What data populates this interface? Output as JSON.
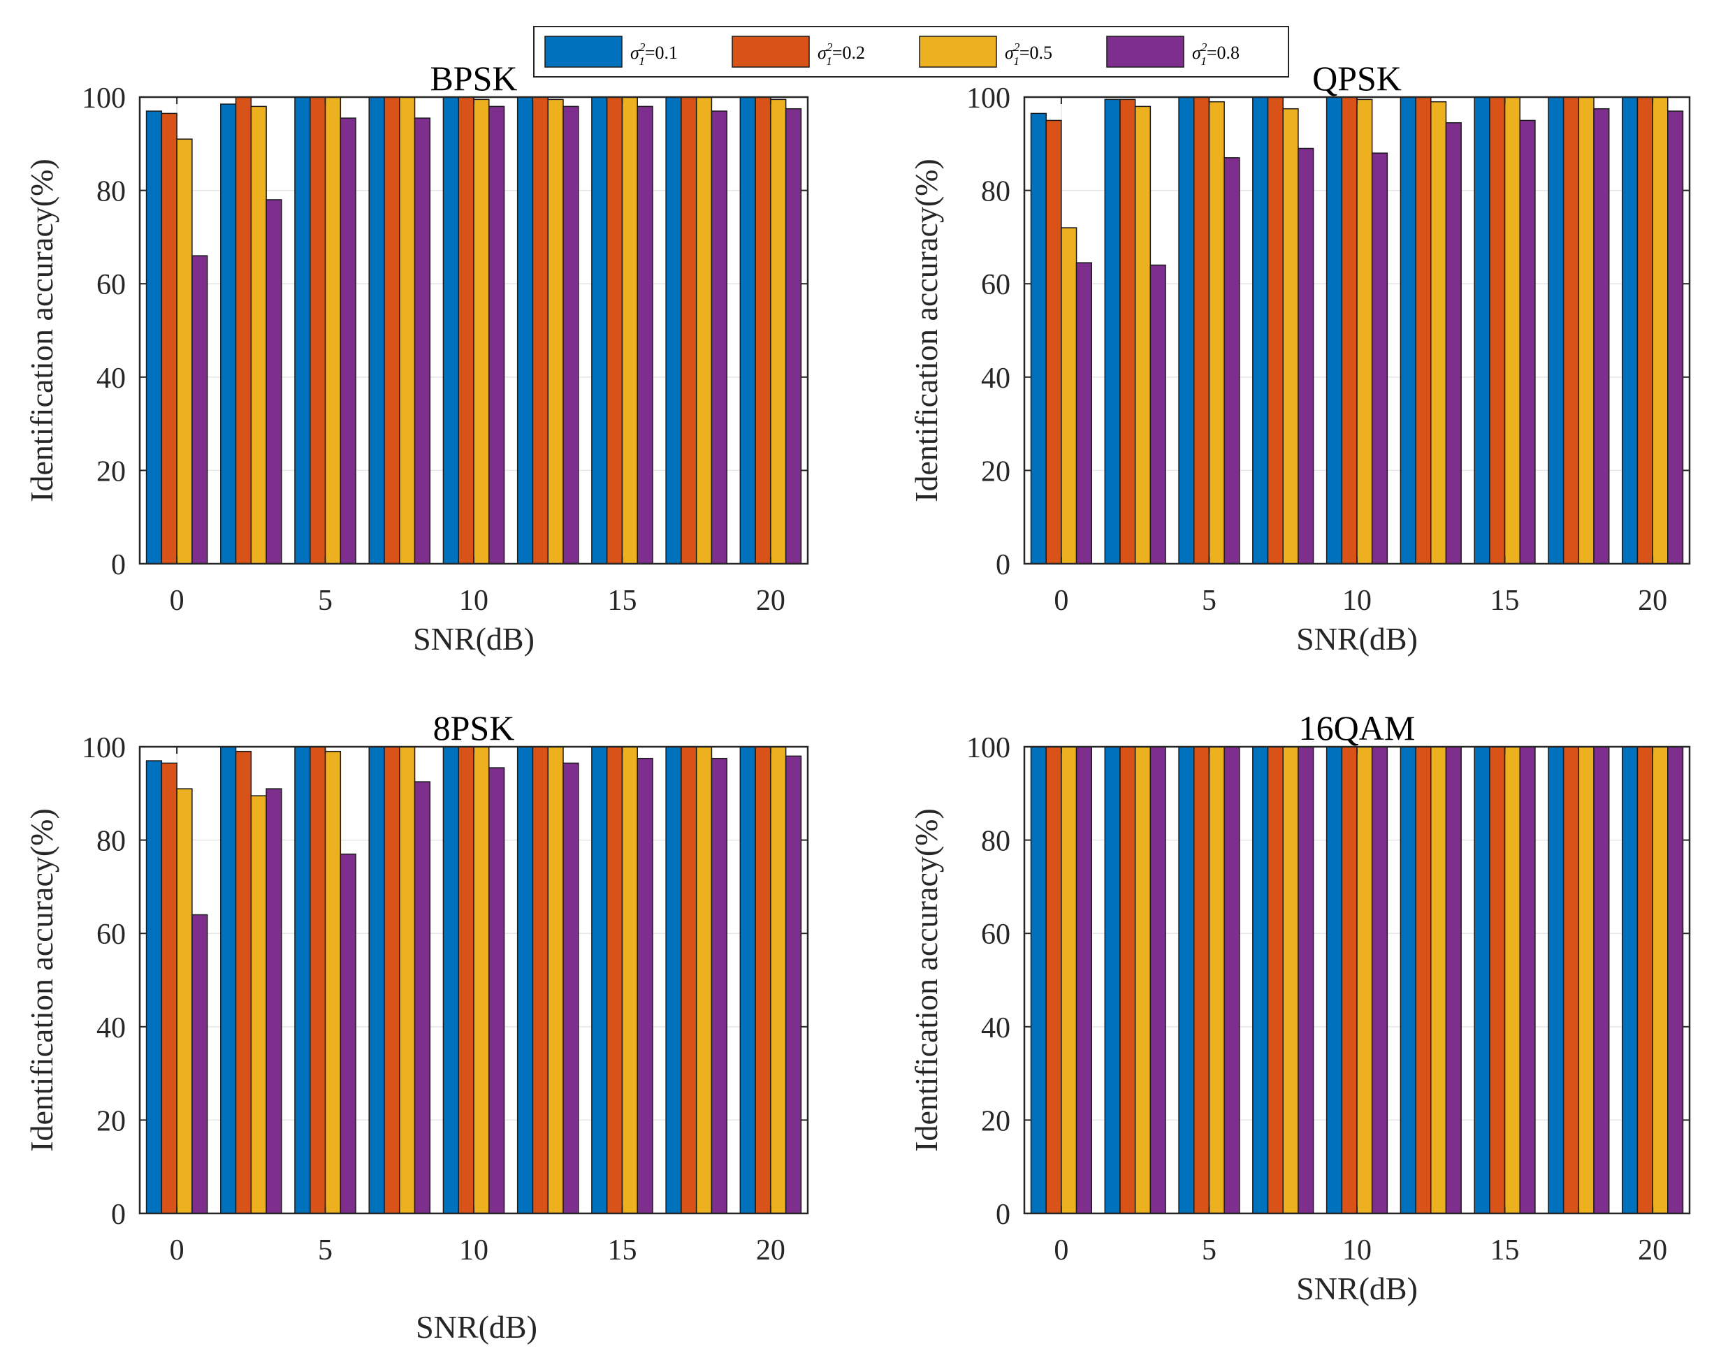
{
  "legend": {
    "symbol": "σ",
    "superscript": "2",
    "subscript": "1",
    "entries": [
      {
        "value": "=0.1",
        "color": "#0072BD"
      },
      {
        "value": "=0.2",
        "color": "#D95319"
      },
      {
        "value": "=0.5",
        "color": "#EDB120"
      },
      {
        "value": "=0.8",
        "color": "#7E2F8E"
      }
    ]
  },
  "chart_data": [
    {
      "type": "bar",
      "title": "BPSK",
      "xlabel": "SNR(dB)",
      "ylabel": "Identification accuracy(%)",
      "categories": [
        0,
        2.5,
        5,
        7.5,
        10,
        12.5,
        15,
        17.5,
        20
      ],
      "xticks": [
        "0",
        "5",
        "10",
        "15",
        "20"
      ],
      "xtick_values": [
        0,
        5,
        10,
        15,
        20
      ],
      "yticks": [
        "0",
        "20",
        "40",
        "60",
        "80",
        "100"
      ],
      "ylim": [
        0,
        100
      ],
      "series": [
        {
          "name": "σ1²=0.1",
          "values": [
            97,
            98.5,
            100,
            100,
            100,
            100,
            100,
            100,
            100
          ]
        },
        {
          "name": "σ1²=0.2",
          "values": [
            96.5,
            100,
            100,
            100,
            100,
            100,
            100,
            100,
            100
          ]
        },
        {
          "name": "σ1²=0.5",
          "values": [
            91,
            98,
            100,
            100,
            99.5,
            99.5,
            100,
            100,
            99.5
          ]
        },
        {
          "name": "σ1²=0.8",
          "values": [
            66,
            78,
            95.5,
            95.5,
            98,
            98,
            98,
            97,
            97.5
          ]
        }
      ]
    },
    {
      "type": "bar",
      "title": "QPSK",
      "xlabel": "SNR(dB)",
      "ylabel": "Identification accuracy(%)",
      "categories": [
        0,
        2.5,
        5,
        7.5,
        10,
        12.5,
        15,
        17.5,
        20
      ],
      "xticks": [
        "0",
        "5",
        "10",
        "15",
        "20"
      ],
      "xtick_values": [
        0,
        5,
        10,
        15,
        20
      ],
      "yticks": [
        "0",
        "20",
        "40",
        "60",
        "80",
        "100"
      ],
      "ylim": [
        0,
        100
      ],
      "series": [
        {
          "name": "σ1²=0.1",
          "values": [
            96.5,
            99.5,
            100,
            100,
            100,
            100,
            100,
            100,
            100
          ]
        },
        {
          "name": "σ1²=0.2",
          "values": [
            95,
            99.5,
            100,
            100,
            100,
            100,
            100,
            100,
            100
          ]
        },
        {
          "name": "σ1²=0.5",
          "values": [
            72,
            98,
            99,
            97.5,
            99.5,
            99,
            100,
            100,
            100
          ]
        },
        {
          "name": "σ1²=0.8",
          "values": [
            64.5,
            64,
            87,
            89,
            88,
            94.5,
            95,
            97.5,
            97
          ]
        }
      ]
    },
    {
      "type": "bar",
      "title": "8PSK",
      "xlabel": "SNR(dB)",
      "ylabel": "Identification accuracy(%)",
      "categories": [
        0,
        2.5,
        5,
        7.5,
        10,
        12.5,
        15,
        17.5,
        20
      ],
      "xticks": [
        "0",
        "5",
        "10",
        "15",
        "20"
      ],
      "xtick_values": [
        0,
        5,
        10,
        15,
        20
      ],
      "yticks": [
        "0",
        "20",
        "40",
        "60",
        "80",
        "100"
      ],
      "ylim": [
        0,
        100
      ],
      "series": [
        {
          "name": "σ1²=0.1",
          "values": [
            97,
            100,
            100,
            100,
            100,
            100,
            100,
            100,
            100
          ]
        },
        {
          "name": "σ1²=0.2",
          "values": [
            96.5,
            99,
            100,
            100,
            100,
            100,
            100,
            100,
            100
          ]
        },
        {
          "name": "σ1²=0.5",
          "values": [
            91,
            89.5,
            99,
            100,
            100,
            100,
            100,
            100,
            100
          ]
        },
        {
          "name": "σ1²=0.8",
          "values": [
            64,
            91,
            77,
            92.5,
            95.5,
            96.5,
            97.5,
            97.5,
            98
          ]
        }
      ]
    },
    {
      "type": "bar",
      "title": "16QAM",
      "xlabel": "SNR(dB)",
      "ylabel": "Identification accuracy(%)",
      "categories": [
        0,
        2.5,
        5,
        7.5,
        10,
        12.5,
        15,
        17.5,
        20
      ],
      "xticks": [
        "0",
        "5",
        "10",
        "15",
        "20"
      ],
      "xtick_values": [
        0,
        5,
        10,
        15,
        20
      ],
      "yticks": [
        "0",
        "20",
        "40",
        "60",
        "80",
        "100"
      ],
      "ylim": [
        0,
        100
      ],
      "series": [
        {
          "name": "σ1²=0.1",
          "values": [
            100,
            100,
            100,
            100,
            100,
            100,
            100,
            100,
            100
          ]
        },
        {
          "name": "σ1²=0.2",
          "values": [
            100,
            100,
            100,
            100,
            100,
            100,
            100,
            100,
            100
          ]
        },
        {
          "name": "σ1²=0.5",
          "values": [
            100,
            100,
            100,
            100,
            100,
            100,
            100,
            100,
            100
          ]
        },
        {
          "name": "σ1²=0.8",
          "values": [
            100,
            100,
            100,
            100,
            100,
            100,
            100,
            100,
            100
          ]
        }
      ]
    }
  ]
}
